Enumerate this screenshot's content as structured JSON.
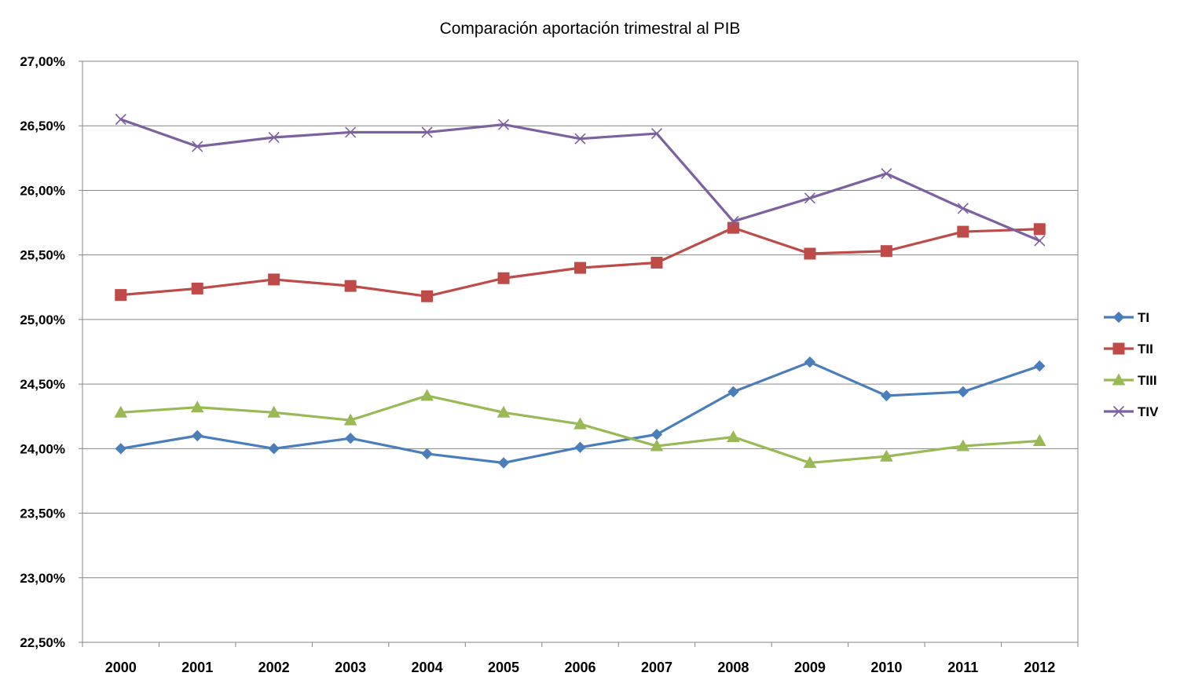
{
  "chart_data": {
    "type": "line",
    "title": "Comparación aportación trimestral al PIB",
    "xlabel": "",
    "ylabel": "",
    "categories": [
      "2000",
      "2001",
      "2002",
      "2003",
      "2004",
      "2005",
      "2006",
      "2007",
      "2008",
      "2009",
      "2010",
      "2011",
      "2012"
    ],
    "ylim": [
      22.5,
      27.0
    ],
    "y_ticks": [
      22.5,
      23.0,
      23.5,
      24.0,
      24.5,
      25.0,
      25.5,
      26.0,
      26.5,
      27.0
    ],
    "y_tick_labels": [
      "22,50%",
      "23,00%",
      "23,50%",
      "24,00%",
      "24,50%",
      "25,00%",
      "25,50%",
      "26,00%",
      "26,50%",
      "27,00%"
    ],
    "grid": true,
    "legend_position": "right",
    "series": [
      {
        "name": "TI",
        "color": "#4A7EBB",
        "marker": "diamond",
        "values": [
          24.0,
          24.1,
          24.0,
          24.08,
          23.96,
          23.89,
          24.01,
          24.11,
          24.44,
          24.67,
          24.41,
          24.44,
          24.64
        ]
      },
      {
        "name": "TII",
        "color": "#BE4B48",
        "marker": "square",
        "values": [
          25.19,
          25.24,
          25.31,
          25.26,
          25.18,
          25.32,
          25.4,
          25.44,
          25.71,
          25.51,
          25.53,
          25.68,
          25.7
        ]
      },
      {
        "name": "TIII",
        "color": "#98B954",
        "marker": "triangle",
        "values": [
          24.28,
          24.32,
          24.28,
          24.22,
          24.41,
          24.28,
          24.19,
          24.02,
          24.09,
          23.89,
          23.94,
          24.02,
          24.06
        ]
      },
      {
        "name": "TIV",
        "color": "#7D60A0",
        "marker": "x",
        "values": [
          26.55,
          26.34,
          26.41,
          26.45,
          26.45,
          26.51,
          26.4,
          26.44,
          25.76,
          25.94,
          26.13,
          25.86,
          25.61
        ]
      }
    ]
  }
}
